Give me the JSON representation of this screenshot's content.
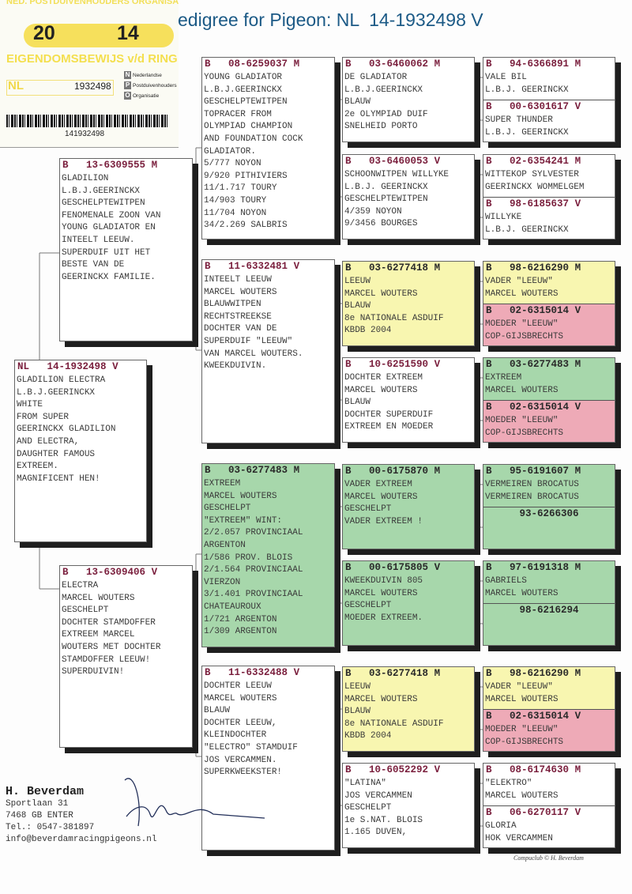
{
  "title": "edigree for Pigeon: NL  14-1932498 V",
  "ring_card": {
    "organisation": "NED. POSTDUIVENHOUDERS ORGANISATIE",
    "year_left": "20",
    "year_right": "14",
    "label": "EIGENDOMSBEWIJS v/d RING",
    "country": "NL",
    "number": "1932498",
    "npo_lines": [
      "Nederlandse",
      "Postduivenhouders",
      "Organisatie"
    ],
    "barcode_number": "141932498"
  },
  "colors": {
    "white": "#ffffff",
    "yellow": "#f8f6b0",
    "pink": "#eeaab7",
    "green": "#a7d7ab",
    "title": "#1c5a86",
    "header": "#7a1f3d"
  },
  "subject": {
    "country": "NL",
    "ring": "14-1932498",
    "sex": "V",
    "color": "white",
    "lines": [
      "GLADILION ELECTRA",
      "L.B.J.GEERINCKX",
      "WHITE",
      "FROM SUPER",
      "GEERINCKX GLADILION",
      "AND ELECTRA,",
      "DAUGHTER FAMOUS",
      "EXTREEM.",
      "MAGNIFICENT HEN!"
    ]
  },
  "parents": [
    {
      "country": "B",
      "ring": "13-6309555",
      "sex": "M",
      "color": "white",
      "lines": [
        "GLADILION",
        "L.B.J.GEERINCKX",
        "GESCHELPTEWITPEN",
        "FENOMENALE ZOON VAN",
        "YOUNG GLADIATOR EN",
        "INTEELT LEEUW.",
        "SUPERDUIF UIT HET",
        "BESTE VAN DE",
        "GEERINCKX FAMILIE."
      ]
    },
    {
      "country": "B",
      "ring": "13-6309406",
      "sex": "V",
      "color": "white",
      "lines": [
        "ELECTRA",
        "MARCEL WOUTERS",
        "GESCHELPT",
        "DOCHTER STAMDOFFER",
        "EXTREEM MARCEL",
        "WOUTERS MET DOCHTER",
        "STAMDOFFER LEEUW!",
        "SUPERDUIVIN!"
      ]
    }
  ],
  "grandparents": [
    {
      "country": "B",
      "ring": "08-6259037",
      "sex": "M",
      "color": "white",
      "lines": [
        "YOUNG GLADIATOR",
        "L.B.J.GEERINCKX",
        "GESCHELPTEWITPEN",
        "TOPRACER FROM",
        "OLYMPIAD CHAMPION",
        "AND FOUNDATION COCK",
        "GLADIATOR.",
        "5/777 NOYON",
        "9/920 PITHIVIERS",
        "11/1.717 TOURY",
        "14/903 TOURY",
        "11/704 NOYON",
        "34/2.269 SALBRIS"
      ]
    },
    {
      "country": "B",
      "ring": "11-6332481",
      "sex": "V",
      "color": "white",
      "lines": [
        "INTEELT LEEUW",
        "MARCEL WOUTERS",
        "BLAUWWITPEN",
        "RECHTSTREEKSE",
        "DOCHTER VAN DE",
        "SUPERDUIF \"LEEUW\"",
        "VAN MARCEL WOUTERS.",
        "KWEEKDUIVIN."
      ]
    },
    {
      "country": "B",
      "ring": "03-6277483",
      "sex": "M",
      "color": "green",
      "lines": [
        "EXTREEM",
        "MARCEL WOUTERS",
        "GESCHELPT",
        "\"EXTREEM\" WINT:",
        "2/2.057 PROVINCIAAL",
        "ARGENTON",
        "1/586 PROV. BLOIS",
        "2/1.564 PROVINCIAAL",
        "VIERZON",
        "3/1.401 PROVINCIAAL",
        "CHATEAUROUX",
        "1/721 ARGENTON",
        "1/309 ARGENTON"
      ]
    },
    {
      "country": "B",
      "ring": "11-6332488",
      "sex": "V",
      "color": "white",
      "lines": [
        "DOCHTER LEEUW",
        "MARCEL WOUTERS",
        "BLAUW",
        "DOCHTER LEEUW,",
        "KLEINDOCHTER",
        "\"ELECTRO\" STAMDUIF",
        "JOS VERCAMMEN.",
        "SUPERKWEEKSTER!"
      ]
    }
  ],
  "great_grandparents": [
    {
      "country": "B",
      "ring": "03-6460062",
      "sex": "M",
      "color": "white",
      "lines": [
        "DE GLADIATOR",
        "L.B.J.GEERINCKX",
        "BLAUW",
        "2e OLYMPIAD DUIF",
        "SNELHEID PORTO"
      ]
    },
    {
      "country": "B",
      "ring": "03-6460053",
      "sex": "V",
      "color": "white",
      "lines": [
        "SCHOONWITPEN WILLYKE",
        "L.B.J. GEERINCKX",
        "GESCHELPTEWITPEN",
        "4/359 NOYON",
        "9/3456 BOURGES"
      ]
    },
    {
      "country": "B",
      "ring": "03-6277418",
      "sex": "M",
      "color": "yellow",
      "lines": [
        "LEEUW",
        "MARCEL WOUTERS",
        "BLAUW",
        "8e NATIONALE ASDUIF",
        "KBDB 2004"
      ]
    },
    {
      "country": "B",
      "ring": "10-6251590",
      "sex": "V",
      "color": "white",
      "lines": [
        "DOCHTER EXTREEM",
        "MARCEL WOUTERS",
        "BLAUW",
        "DOCHTER SUPERDUIF",
        "EXTREEM EN MOEDER"
      ]
    },
    {
      "country": "B",
      "ring": "00-6175870",
      "sex": "M",
      "color": "green",
      "lines": [
        "VADER EXTREEM",
        "MARCEL WOUTERS",
        "GESCHELPT",
        "VADER EXTREEM !"
      ]
    },
    {
      "country": "B",
      "ring": "00-6175805",
      "sex": "V",
      "color": "green",
      "lines": [
        "KWEEKDUIVIN 805",
        "MARCEL WOUTERS",
        "GESCHELPT",
        "MOEDER EXTREEM."
      ]
    },
    {
      "country": "B",
      "ring": "03-6277418",
      "sex": "M",
      "color": "yellow",
      "lines": [
        "LEEUW",
        "MARCEL WOUTERS",
        "BLAUW",
        "8e NATIONALE ASDUIF",
        "KBDB 2004"
      ]
    },
    {
      "country": "B",
      "ring": "10-6052292",
      "sex": "V",
      "color": "white",
      "lines": [
        "\"LATINA\"",
        "JOS VERCAMMEN",
        "GESCHELPT",
        "1e S.NAT. BLOIS",
        "1.165 DUVEN,"
      ]
    }
  ],
  "great_great_grandparents": [
    {
      "country": "B",
      "ring": "94-6366891",
      "sex": "M",
      "color": "white",
      "lines": [
        "VALE BIL",
        "L.B.J. GEERINCKX"
      ]
    },
    {
      "country": "B",
      "ring": "00-6301617",
      "sex": "V",
      "color": "white",
      "lines": [
        "SUPER THUNDER",
        "L.B.J. GEERINCKX"
      ]
    },
    {
      "country": "B",
      "ring": "02-6354241",
      "sex": "M",
      "color": "white",
      "lines": [
        "WITTEKOP SYLVESTER",
        "GEERINCKX WOMMELGEM"
      ]
    },
    {
      "country": "B",
      "ring": "98-6185637",
      "sex": "V",
      "color": "white",
      "lines": [
        "WILLYKE",
        "L.B.J. GEERINCKX"
      ]
    },
    {
      "country": "B",
      "ring": "98-6216290",
      "sex": "M",
      "color": "yellow",
      "lines": [
        "VADER \"LEEUW\"",
        "MARCEL WOUTERS"
      ]
    },
    {
      "country": "B",
      "ring": "02-6315014",
      "sex": "V",
      "color": "pink",
      "lines": [
        "MOEDER \"LEEUW\"",
        "COP-GIJSBRECHTS"
      ]
    },
    {
      "country": "B",
      "ring": "03-6277483",
      "sex": "M",
      "color": "green",
      "lines": [
        "EXTREEM",
        "MARCEL WOUTERS"
      ]
    },
    {
      "country": "B",
      "ring": "02-6315014",
      "sex": "V",
      "color": "pink",
      "lines": [
        "MOEDER \"LEEUW\"",
        "COP-GIJSBRECHTS"
      ]
    },
    {
      "country": "B",
      "ring": "95-6191607",
      "sex": "M",
      "color": "green",
      "lines": [
        "VERMEIREN BROCATUS",
        "VERMEIREN BROCATUS"
      ]
    },
    {
      "country": "",
      "ring": "93-6266306",
      "sex": "",
      "color": "green",
      "lines": []
    },
    {
      "country": "B",
      "ring": "97-6191318",
      "sex": "M",
      "color": "green",
      "lines": [
        "GABRIELS",
        "MARCEL WOUTERS"
      ]
    },
    {
      "country": "",
      "ring": "98-6216294",
      "sex": "",
      "color": "green",
      "lines": []
    },
    {
      "country": "B",
      "ring": "98-6216290",
      "sex": "M",
      "color": "yellow",
      "lines": [
        "VADER \"LEEUW\"",
        "MARCEL WOUTERS"
      ]
    },
    {
      "country": "B",
      "ring": "02-6315014",
      "sex": "V",
      "color": "pink",
      "lines": [
        "MOEDER \"LEEUW\"",
        "COP-GIJSBRECHTS"
      ]
    },
    {
      "country": "B",
      "ring": "08-6174630",
      "sex": "M",
      "color": "white",
      "lines": [
        "\"ELEKTRO\"",
        "MARCEL WOUTERS"
      ]
    },
    {
      "country": "B",
      "ring": "06-6270117",
      "sex": "V",
      "color": "white",
      "lines": [
        "GLORIA",
        "HOK VERCAMMEN"
      ]
    }
  ],
  "breeder": {
    "name": "H. Beverdam",
    "lines": [
      "Sportlaan 31",
      "7468 GB  ENTER",
      "Tel.: 0547-381897",
      "info@beverdamracingpigeons.nl"
    ]
  },
  "credit": "Compuclub © H. Beverdam"
}
